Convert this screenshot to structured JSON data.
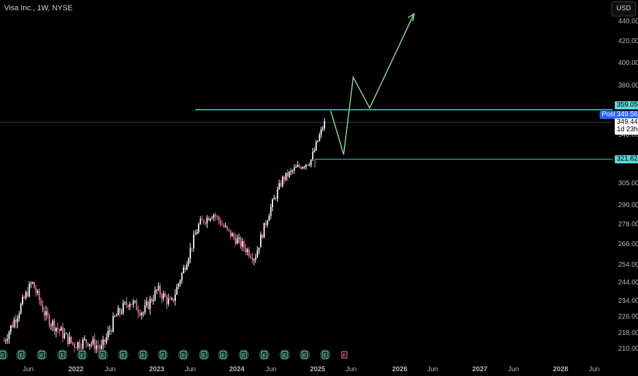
{
  "header": {
    "title": "Visa Inc., 1W, NYSE"
  },
  "currency_button": {
    "label": "USD"
  },
  "price_axis": {
    "ticks": [
      "440.00",
      "420.00",
      "400.00",
      "380.00",
      "340.00",
      "305.00",
      "290.00",
      "278.00",
      "266.00",
      "254.00",
      "244.00",
      "234.00",
      "226.00",
      "218.00",
      "210.00"
    ]
  },
  "time_axis": {
    "ticks": [
      "Jun",
      "2022",
      "Jun",
      "2023",
      "Jun",
      "2024",
      "Jun",
      "2025",
      "Jun",
      "2026",
      "Jun",
      "2027",
      "Jun",
      "2028",
      "Jun"
    ]
  },
  "price_tags": {
    "resistance": "359.05",
    "post_label": "Post",
    "post_price": "349.56",
    "last_price": "349.44",
    "countdown": "1d 23h",
    "support": "321.62"
  },
  "earnings_marker_label": "E",
  "colors": {
    "background": "#000000",
    "up_candle": "#ffffff",
    "down_candle": "#e8799e",
    "level_line": "#5ed6d6",
    "projection": "#8fd694",
    "post_badge": "#2962ff"
  },
  "chart_data": {
    "type": "candlestick",
    "symbol": "Visa Inc.",
    "interval": "1W",
    "exchange": "NYSE",
    "currency": "USD",
    "horizontal_levels": [
      359.05,
      321.62
    ],
    "last_price": 349.44,
    "post_market_price": 349.56,
    "projection_path": [
      {
        "date": "2025-01-27",
        "price": 359
      },
      {
        "date": "2025-03-20",
        "price": 323
      },
      {
        "date": "2025-04-25",
        "price": 388
      },
      {
        "date": "2025-06-28",
        "price": 360
      },
      {
        "date": "2025-10-02",
        "price": 447
      }
    ],
    "close_series": [
      {
        "date": "2021-06",
        "price": 214
      },
      {
        "date": "2021-09",
        "price": 228
      },
      {
        "date": "2021-11",
        "price": 244
      },
      {
        "date": "2022-01",
        "price": 226
      },
      {
        "date": "2022-04",
        "price": 219
      },
      {
        "date": "2022-06",
        "price": 212
      },
      {
        "date": "2022-09",
        "price": 214
      },
      {
        "date": "2022-12",
        "price": 210
      },
      {
        "date": "2023-02",
        "price": 226
      },
      {
        "date": "2023-04",
        "price": 234
      },
      {
        "date": "2023-06",
        "price": 228
      },
      {
        "date": "2023-08",
        "price": 240
      },
      {
        "date": "2023-10",
        "price": 232
      },
      {
        "date": "2023-12",
        "price": 254
      },
      {
        "date": "2024-02",
        "price": 278
      },
      {
        "date": "2024-03",
        "price": 285
      },
      {
        "date": "2024-05",
        "price": 274
      },
      {
        "date": "2024-07",
        "price": 266
      },
      {
        "date": "2024-08",
        "price": 258
      },
      {
        "date": "2024-10",
        "price": 285
      },
      {
        "date": "2024-11",
        "price": 308
      },
      {
        "date": "2024-12",
        "price": 316
      },
      {
        "date": "2025-01",
        "price": 321
      },
      {
        "date": "2025-01-27",
        "price": 349.44
      }
    ],
    "y_axis_scale": "log",
    "grid": false
  }
}
